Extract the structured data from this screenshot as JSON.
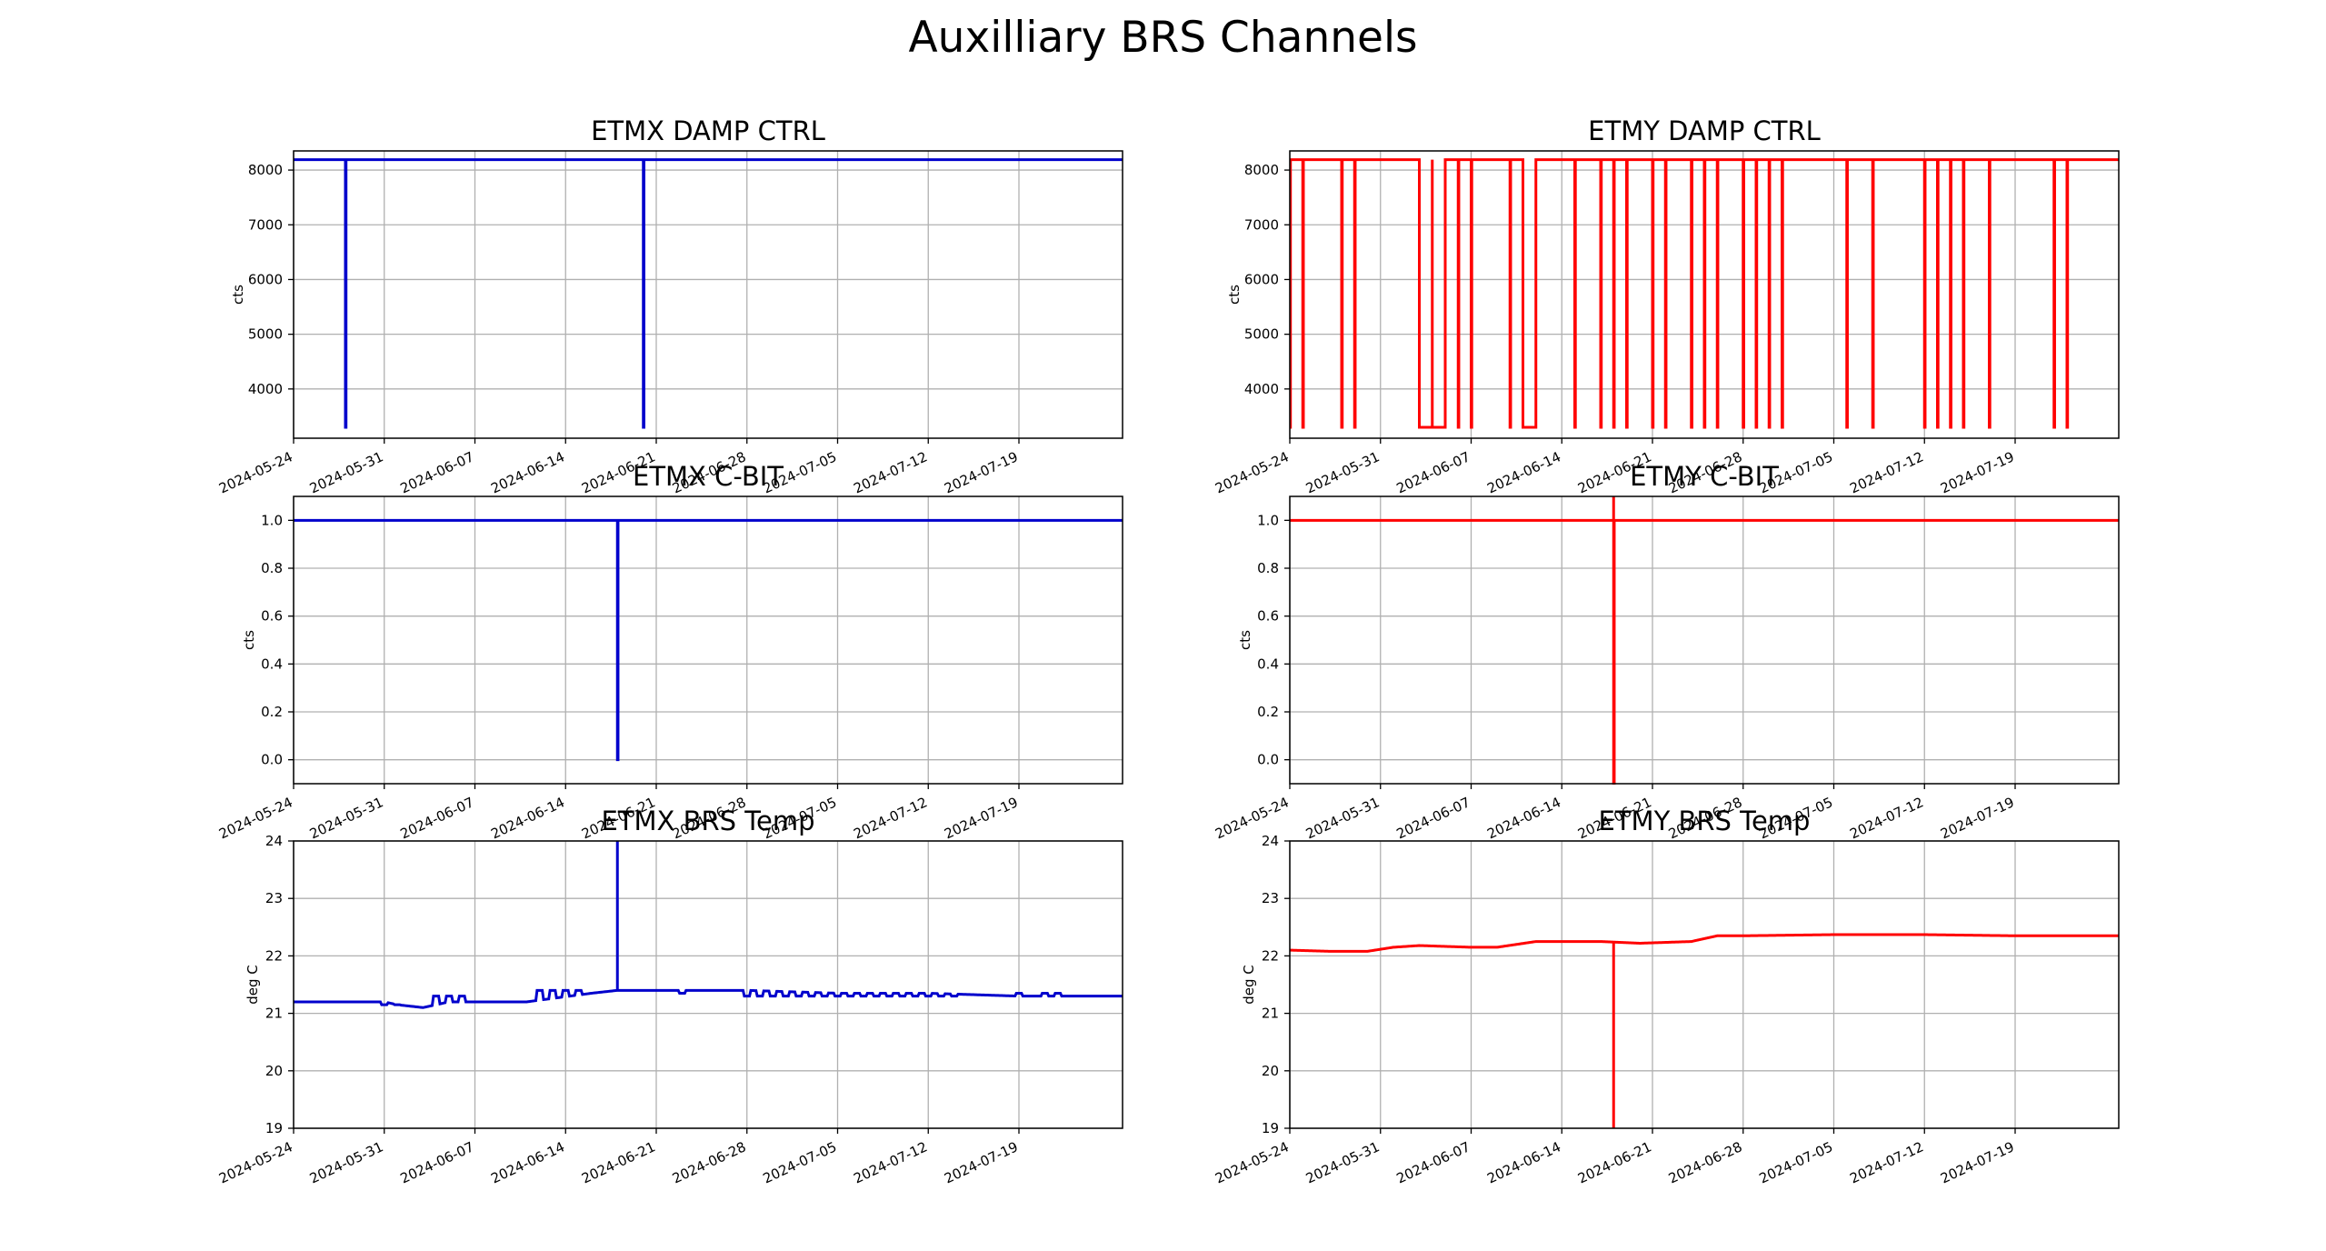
{
  "figure": {
    "title": "Auxilliary BRS Channels"
  },
  "chart_data": [
    {
      "id": "etmx-damp",
      "type": "line",
      "title": "ETMX DAMP CTRL",
      "xlabel": "",
      "ylabel": "cts",
      "color": "#0000cc",
      "xlim": [
        "2024-05-24",
        "2024-07-27"
      ],
      "ylim": [
        3100,
        8350
      ],
      "yticks": [
        4000,
        5000,
        6000,
        7000,
        8000
      ],
      "ytick_labels": [
        "4000",
        "5000",
        "6000",
        "7000",
        "8000"
      ],
      "xticks": [
        "2024-05-24",
        "2024-05-31",
        "2024-06-07",
        "2024-06-14",
        "2024-06-21",
        "2024-06-28",
        "2024-07-05",
        "2024-07-12",
        "2024-07-19"
      ],
      "grid": true,
      "base_value": 8190,
      "drop_value": 3300,
      "drops": [
        [
          "2024-05-28",
          "2024-05-28"
        ],
        [
          "2024-06-20",
          "2024-06-20"
        ]
      ],
      "spikes": []
    },
    {
      "id": "etmy-damp",
      "type": "line",
      "title": "ETMY DAMP CTRL",
      "xlabel": "",
      "ylabel": "cts",
      "color": "#ff0000",
      "xlim": [
        "2024-05-24",
        "2024-07-27"
      ],
      "ylim": [
        3100,
        8350
      ],
      "yticks": [
        4000,
        5000,
        6000,
        7000,
        8000
      ],
      "ytick_labels": [
        "4000",
        "5000",
        "6000",
        "7000",
        "8000"
      ],
      "xticks": [
        "2024-05-24",
        "2024-05-31",
        "2024-06-07",
        "2024-06-14",
        "2024-06-21",
        "2024-06-28",
        "2024-07-05",
        "2024-07-12",
        "2024-07-19"
      ],
      "grid": true,
      "base_value": 8190,
      "drop_value": 3300,
      "drops": [
        [
          "2024-05-24",
          "2024-05-24"
        ],
        [
          "2024-05-25",
          "2024-05-25"
        ],
        [
          "2024-05-28",
          "2024-05-28"
        ],
        [
          "2024-05-29",
          "2024-05-29"
        ],
        [
          "2024-06-03",
          "2024-06-04"
        ],
        [
          "2024-06-04",
          "2024-06-05"
        ],
        [
          "2024-06-06",
          "2024-06-06"
        ],
        [
          "2024-06-07",
          "2024-06-07"
        ],
        [
          "2024-06-10",
          "2024-06-10"
        ],
        [
          "2024-06-11",
          "2024-06-12"
        ],
        [
          "2024-06-15",
          "2024-06-15"
        ],
        [
          "2024-06-17",
          "2024-06-17"
        ],
        [
          "2024-06-18",
          "2024-06-18"
        ],
        [
          "2024-06-19",
          "2024-06-19"
        ],
        [
          "2024-06-21",
          "2024-06-21"
        ],
        [
          "2024-06-22",
          "2024-06-22"
        ],
        [
          "2024-06-24",
          "2024-06-24"
        ],
        [
          "2024-06-25",
          "2024-06-25"
        ],
        [
          "2024-06-26",
          "2024-06-26"
        ],
        [
          "2024-06-28",
          "2024-06-28"
        ],
        [
          "2024-06-29",
          "2024-06-29"
        ],
        [
          "2024-06-30",
          "2024-06-30"
        ],
        [
          "2024-07-01",
          "2024-07-01"
        ],
        [
          "2024-07-06",
          "2024-07-06"
        ],
        [
          "2024-07-08",
          "2024-07-08"
        ],
        [
          "2024-07-12",
          "2024-07-12"
        ],
        [
          "2024-07-13",
          "2024-07-13"
        ],
        [
          "2024-07-14",
          "2024-07-14"
        ],
        [
          "2024-07-15",
          "2024-07-15"
        ],
        [
          "2024-07-17",
          "2024-07-17"
        ],
        [
          "2024-07-22",
          "2024-07-22"
        ],
        [
          "2024-07-23",
          "2024-07-23"
        ]
      ],
      "spikes": []
    },
    {
      "id": "etmx-cbit",
      "type": "line",
      "title": "ETMX C-BIT",
      "xlabel": "",
      "ylabel": "cts",
      "color": "#0000cc",
      "xlim": [
        "2024-05-24",
        "2024-07-27"
      ],
      "ylim": [
        -0.1,
        1.1
      ],
      "yticks": [
        0.0,
        0.2,
        0.4,
        0.6,
        0.8,
        1.0
      ],
      "ytick_labels": [
        "0.0",
        "0.2",
        "0.4",
        "0.6",
        "0.8",
        "1.0"
      ],
      "xticks": [
        "2024-05-24",
        "2024-05-31",
        "2024-06-07",
        "2024-06-14",
        "2024-06-21",
        "2024-06-28",
        "2024-07-05",
        "2024-07-12",
        "2024-07-19"
      ],
      "grid": true,
      "base_value": 1.0,
      "drop_value": 0.0,
      "drops": [
        [
          "2024-06-18",
          "2024-06-18"
        ]
      ],
      "spikes": []
    },
    {
      "id": "etmy-cbit",
      "type": "line",
      "title": "ETMY C-BIT",
      "xlabel": "",
      "ylabel": "cts",
      "color": "#ff0000",
      "xlim": [
        "2024-05-24",
        "2024-07-27"
      ],
      "ylim": [
        -0.1,
        1.1
      ],
      "yticks": [
        0.0,
        0.2,
        0.4,
        0.6,
        0.8,
        1.0
      ],
      "ytick_labels": [
        "0.0",
        "0.2",
        "0.4",
        "0.6",
        "0.8",
        "1.0"
      ],
      "xticks": [
        "2024-05-24",
        "2024-05-31",
        "2024-06-07",
        "2024-06-14",
        "2024-06-21",
        "2024-06-28",
        "2024-07-05",
        "2024-07-12",
        "2024-07-19"
      ],
      "grid": true,
      "base_value": 1.0,
      "drop_value": -0.1,
      "drops": [
        [
          "2024-06-18",
          "2024-06-18"
        ]
      ],
      "spikes": [
        [
          "2024-06-18",
          1.1
        ]
      ]
    },
    {
      "id": "etmx-temp",
      "type": "line",
      "title": "ETMX BRS Temp",
      "xlabel": "",
      "ylabel": "deg C",
      "color": "#0000cc",
      "xlim": [
        "2024-05-24",
        "2024-07-27"
      ],
      "ylim": [
        19,
        24
      ],
      "yticks": [
        19,
        20,
        21,
        22,
        23,
        24
      ],
      "ytick_labels": [
        "19",
        "20",
        "21",
        "22",
        "23",
        "24"
      ],
      "xticks": [
        "2024-05-24",
        "2024-05-31",
        "2024-06-07",
        "2024-06-14",
        "2024-06-21",
        "2024-06-28",
        "2024-07-05",
        "2024-07-12",
        "2024-07-19"
      ],
      "grid": true,
      "x": [
        "2024-05-24",
        "2024-05-31",
        "2024-06-01",
        "2024-06-03",
        "2024-06-05",
        "2024-06-07",
        "2024-06-11",
        "2024-06-16",
        "2024-06-18",
        "2024-06-26",
        "2024-06-28",
        "2024-07-05",
        "2024-07-12",
        "2024-07-19",
        "2024-07-27"
      ],
      "values": [
        21.2,
        21.2,
        21.15,
        21.1,
        21.2,
        21.2,
        21.2,
        21.35,
        21.4,
        21.4,
        21.4,
        21.35,
        21.35,
        21.3,
        21.3
      ],
      "wiggles": [
        [
          "2024-05-31",
          21.15
        ],
        [
          "2024-06-01",
          21.15
        ],
        [
          "2024-06-04",
          21.3
        ],
        [
          "2024-06-05",
          21.3
        ],
        [
          "2024-06-06",
          21.3
        ],
        [
          "2024-06-12",
          21.4
        ],
        [
          "2024-06-13",
          21.4
        ],
        [
          "2024-06-14",
          21.4
        ],
        [
          "2024-06-15",
          21.4
        ],
        [
          "2024-06-23",
          21.35
        ],
        [
          "2024-06-28",
          21.3
        ],
        [
          "2024-06-29",
          21.3
        ],
        [
          "2024-06-30",
          21.3
        ],
        [
          "2024-07-01",
          21.3
        ],
        [
          "2024-07-02",
          21.3
        ],
        [
          "2024-07-03",
          21.3
        ],
        [
          "2024-07-04",
          21.3
        ],
        [
          "2024-07-05",
          21.3
        ],
        [
          "2024-07-06",
          21.3
        ],
        [
          "2024-07-07",
          21.3
        ],
        [
          "2024-07-08",
          21.3
        ],
        [
          "2024-07-09",
          21.3
        ],
        [
          "2024-07-10",
          21.3
        ],
        [
          "2024-07-11",
          21.3
        ],
        [
          "2024-07-12",
          21.3
        ],
        [
          "2024-07-13",
          21.3
        ],
        [
          "2024-07-14",
          21.3
        ],
        [
          "2024-07-19",
          21.35
        ],
        [
          "2024-07-21",
          21.35
        ],
        [
          "2024-07-22",
          21.35
        ]
      ],
      "spikes": [
        [
          "2024-06-18",
          24.0
        ]
      ]
    },
    {
      "id": "etmy-temp",
      "type": "line",
      "title": "ETMY BRS Temp",
      "xlabel": "",
      "ylabel": "deg C",
      "color": "#ff0000",
      "xlim": [
        "2024-05-24",
        "2024-07-27"
      ],
      "ylim": [
        19,
        24
      ],
      "yticks": [
        19,
        20,
        21,
        22,
        23,
        24
      ],
      "ytick_labels": [
        "19",
        "20",
        "21",
        "22",
        "23",
        "24"
      ],
      "xticks": [
        "2024-05-24",
        "2024-05-31",
        "2024-06-07",
        "2024-06-14",
        "2024-06-21",
        "2024-06-28",
        "2024-07-05",
        "2024-07-12",
        "2024-07-19"
      ],
      "grid": true,
      "x": [
        "2024-05-24",
        "2024-05-27",
        "2024-05-30",
        "2024-06-01",
        "2024-06-03",
        "2024-06-07",
        "2024-06-09",
        "2024-06-12",
        "2024-06-17",
        "2024-06-20",
        "2024-06-24",
        "2024-06-26",
        "2024-06-28",
        "2024-07-05",
        "2024-07-12",
        "2024-07-19",
        "2024-07-27"
      ],
      "values": [
        22.1,
        22.08,
        22.08,
        22.15,
        22.18,
        22.15,
        22.15,
        22.25,
        22.25,
        22.22,
        22.25,
        22.35,
        22.35,
        22.37,
        22.37,
        22.35,
        22.35
      ],
      "wiggles": [],
      "spikes": [
        [
          "2024-06-18",
          19.0
        ]
      ]
    }
  ]
}
